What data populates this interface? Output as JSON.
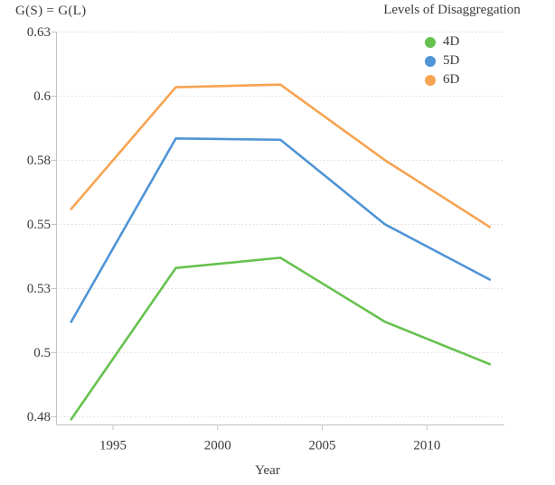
{
  "chart_data": {
    "type": "line",
    "title": "",
    "ylabel": "G(S) = G(L)",
    "xlabel": "Year",
    "legend_title": "Levels of Disaggregation",
    "legend_position": "top-right",
    "grid": "horizontal dotted",
    "x": [
      1993,
      1998,
      2003,
      2008,
      2013
    ],
    "series": [
      {
        "name": "4D",
        "color": "#67c14f",
        "values": [
          0.474,
          0.533,
          0.537,
          0.512,
          0.4955
        ]
      },
      {
        "name": "5D",
        "color": "#4f94d6",
        "values": [
          0.512,
          0.5835,
          0.583,
          0.55,
          0.5285
        ]
      },
      {
        "name": "6D",
        "color": "#f7a351",
        "values": [
          0.556,
          0.6035,
          0.6045,
          0.575,
          0.549
        ]
      }
    ],
    "x_ticks": [
      {
        "value": 1995,
        "label": "1995"
      },
      {
        "value": 2000,
        "label": "2000"
      },
      {
        "value": 2005,
        "label": "2005"
      },
      {
        "value": 2010,
        "label": "2010"
      }
    ],
    "y_ticks": [
      {
        "value": 0.625,
        "label": "0.63"
      },
      {
        "value": 0.6,
        "label": "0.6"
      },
      {
        "value": 0.575,
        "label": "0.58"
      },
      {
        "value": 0.55,
        "label": "0.55"
      },
      {
        "value": 0.525,
        "label": "0.53"
      },
      {
        "value": 0.5,
        "label": "0.5"
      },
      {
        "value": 0.475,
        "label": "0.48"
      }
    ],
    "xlim": [
      1992.3,
      2013.7
    ],
    "ylim": [
      0.4718,
      0.625
    ],
    "colors": {
      "grid": "#d9d9d9",
      "axis": "#c3c3c3",
      "text": "#3a3a3a"
    }
  }
}
